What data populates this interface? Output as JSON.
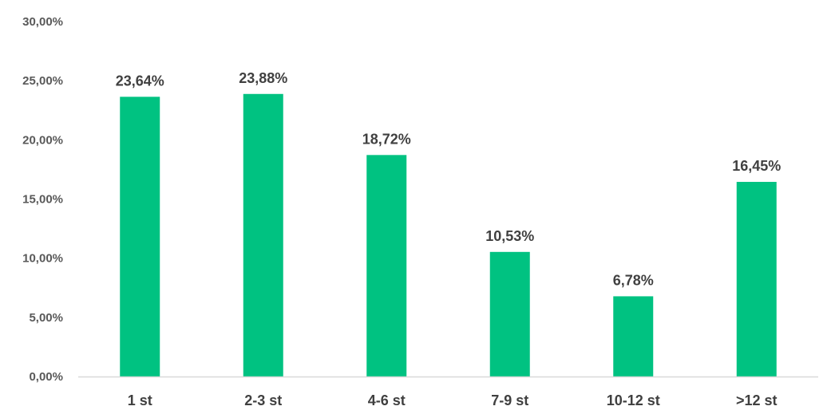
{
  "chart_data": {
    "type": "bar",
    "title": "",
    "xlabel": "",
    "ylabel": "",
    "categories": [
      "1 st",
      "2-3 st",
      "4-6 st",
      "7-9 st",
      "10-12 st",
      ">12 st"
    ],
    "values": [
      23.64,
      23.88,
      18.72,
      10.53,
      6.78,
      16.45
    ],
    "data_labels": [
      "23,64%",
      "23,88%",
      "18,72%",
      "10,53%",
      "6,78%",
      "16,45%"
    ],
    "ylim": [
      0,
      30
    ],
    "yticks": [
      0,
      5,
      10,
      15,
      20,
      25,
      30
    ],
    "ytick_labels": [
      "0,00%",
      "5,00%",
      "10,00%",
      "15,00%",
      "20,00%",
      "25,00%",
      "30,00%"
    ],
    "grid": false,
    "legend": "none",
    "colors": {
      "bar": "#00c281",
      "axis": "#d9d9d9",
      "text": "#404040",
      "tick_text": "#595959"
    }
  }
}
